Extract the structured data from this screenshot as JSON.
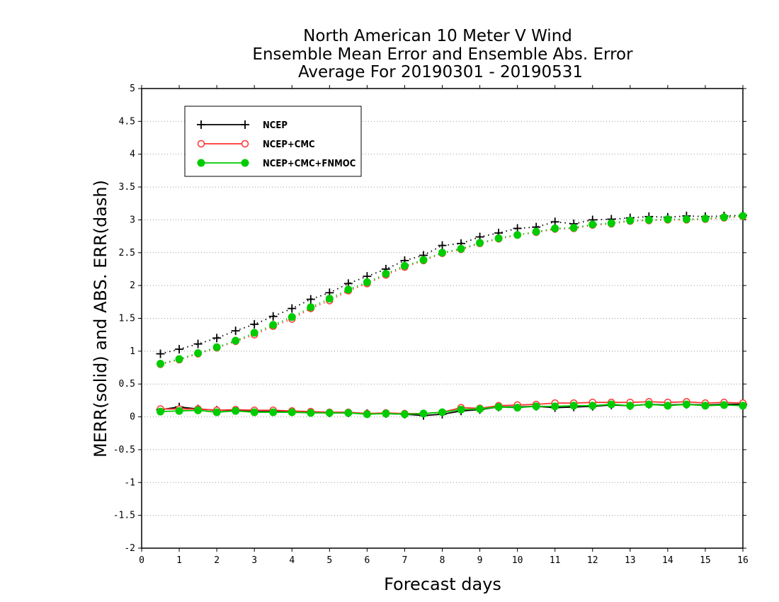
{
  "chart_data": {
    "type": "line",
    "title": [
      "North American 10 Meter V Wind",
      "Ensemble Mean Error and Ensemble Abs. Error",
      "Average For 20190301 - 20190531"
    ],
    "xlabel": "Forecast days",
    "ylabel": "MERR(solid) and ABS. ERR(dash)",
    "xlim": [
      0,
      16
    ],
    "ylim": [
      -2,
      5
    ],
    "xticks": [
      "0",
      "1",
      "2",
      "3",
      "4",
      "5",
      "6",
      "7",
      "8",
      "9",
      "10",
      "11",
      "12",
      "13",
      "14",
      "15",
      "16"
    ],
    "yticks": [
      "-2",
      "-1.5",
      "-1",
      "-0.5",
      "0",
      "0.5",
      "1",
      "1.5",
      "2",
      "2.5",
      "3",
      "3.5",
      "4",
      "4.5",
      "5"
    ],
    "grid": "horizontal-dotted",
    "legend_position": "top-left",
    "x": [
      0.5,
      1,
      1.5,
      2,
      2.5,
      3,
      3.5,
      4,
      4.5,
      5,
      5.5,
      6,
      6.5,
      7,
      7.5,
      8,
      8.5,
      9,
      9.5,
      10,
      10.5,
      11,
      11.5,
      12,
      12.5,
      13,
      13.5,
      14,
      14.5,
      15,
      15.5,
      16
    ],
    "series": [
      {
        "name": "NCEP",
        "color": "#000000",
        "marker": "plus",
        "merr": [
          0.11,
          0.15,
          0.12,
          0.1,
          0.1,
          0.08,
          0.08,
          0.08,
          0.07,
          0.06,
          0.06,
          0.05,
          0.05,
          0.04,
          0.02,
          0.04,
          0.09,
          0.11,
          0.15,
          0.15,
          0.16,
          0.14,
          0.15,
          0.16,
          0.18,
          0.17,
          0.19,
          0.18,
          0.19,
          0.18,
          0.19,
          0.19
        ],
        "abs_err": [
          0.96,
          1.03,
          1.11,
          1.2,
          1.31,
          1.41,
          1.53,
          1.65,
          1.79,
          1.89,
          2.03,
          2.14,
          2.25,
          2.38,
          2.46,
          2.61,
          2.64,
          2.74,
          2.8,
          2.87,
          2.89,
          2.97,
          2.94,
          3.0,
          3.01,
          3.03,
          3.05,
          3.04,
          3.06,
          3.05,
          3.06,
          3.07
        ]
      },
      {
        "name": "NCEP+CMC",
        "color": "#ff3333",
        "marker": "open-circle",
        "merr": [
          0.12,
          0.12,
          0.12,
          0.1,
          0.11,
          0.1,
          0.1,
          0.09,
          0.08,
          0.07,
          0.07,
          0.05,
          0.06,
          0.05,
          0.05,
          0.07,
          0.14,
          0.13,
          0.17,
          0.18,
          0.19,
          0.21,
          0.21,
          0.22,
          0.22,
          0.22,
          0.23,
          0.22,
          0.23,
          0.21,
          0.22,
          0.21
        ],
        "abs_err": [
          0.8,
          0.87,
          0.96,
          1.05,
          1.15,
          1.25,
          1.38,
          1.49,
          1.65,
          1.77,
          1.92,
          2.03,
          2.16,
          2.28,
          2.38,
          2.49,
          2.55,
          2.64,
          2.71,
          2.77,
          2.81,
          2.86,
          2.87,
          2.92,
          2.94,
          2.98,
          2.99,
          3.0,
          3.0,
          3.01,
          3.03,
          3.05
        ]
      },
      {
        "name": "NCEP+CMC+FNMOC",
        "color": "#00cc00",
        "marker": "filled-circle",
        "merr": [
          0.08,
          0.09,
          0.1,
          0.07,
          0.09,
          0.07,
          0.07,
          0.07,
          0.06,
          0.06,
          0.06,
          0.04,
          0.05,
          0.04,
          0.05,
          0.07,
          0.11,
          0.12,
          0.15,
          0.14,
          0.16,
          0.16,
          0.17,
          0.17,
          0.19,
          0.17,
          0.19,
          0.17,
          0.19,
          0.17,
          0.18,
          0.17
        ],
        "abs_err": [
          0.81,
          0.88,
          0.97,
          1.06,
          1.16,
          1.28,
          1.4,
          1.52,
          1.67,
          1.8,
          1.94,
          2.05,
          2.18,
          2.3,
          2.39,
          2.5,
          2.56,
          2.65,
          2.72,
          2.77,
          2.82,
          2.87,
          2.88,
          2.93,
          2.95,
          2.99,
          3.0,
          3.01,
          3.01,
          3.02,
          3.04,
          3.06
        ]
      }
    ]
  }
}
